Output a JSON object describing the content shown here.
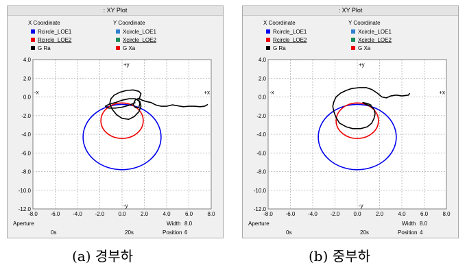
{
  "panels": [
    {
      "window_title": ": XY Plot",
      "legend": {
        "x_header": "X Coordinate",
        "y_header": "Y Coordinate",
        "x_items": [
          {
            "label": "Rcircle_LOE1",
            "color": "#0000ee",
            "underline": false
          },
          {
            "label": "Rcircle_LOE2",
            "color": "#ee0000",
            "underline": true
          },
          {
            "label": "G  Ra",
            "color": "#000000",
            "underline": false
          }
        ],
        "y_items": [
          {
            "label": "Xcircle_LOE1",
            "color": "#2f7fd0",
            "underline": false
          },
          {
            "label": "Xcircle_LOE2",
            "color": "#1a8a5a",
            "underline": true
          },
          {
            "label": "G  Xa",
            "color": "#ee0000",
            "underline": false
          }
        ]
      },
      "axis_markers": {
        "pos_y": "+y",
        "neg_y": "-y",
        "pos_x": "+x",
        "neg_x": "-x"
      },
      "footer": {
        "aperture_label": "Aperture",
        "width_label": "Width",
        "width_value": "8.0",
        "time_start": "0s",
        "time_end": "20s",
        "position_label": "Position",
        "position_value": "6"
      },
      "caption": "(a)  경부하"
    },
    {
      "window_title": ": XY Plot",
      "legend": {
        "x_header": "X Coordinate",
        "y_header": "Y Coordinate",
        "x_items": [
          {
            "label": "Rcircle_LOE1",
            "color": "#0000ee",
            "underline": false
          },
          {
            "label": "Rcircle_LOE2",
            "color": "#ee0000",
            "underline": true
          },
          {
            "label": "G  Ra",
            "color": "#000000",
            "underline": false
          }
        ],
        "y_items": [
          {
            "label": "Xcircle_LOE1",
            "color": "#2f7fd0",
            "underline": false
          },
          {
            "label": "Xcircle_LOE2",
            "color": "#1a8a5a",
            "underline": true
          },
          {
            "label": "G  Xa",
            "color": "#ee0000",
            "underline": false
          }
        ]
      },
      "axis_markers": {
        "pos_y": "+y",
        "neg_y": "-y",
        "pos_x": "+x",
        "neg_x": "-x"
      },
      "footer": {
        "aperture_label": "Aperture",
        "width_label": "Width",
        "width_value": "8.0",
        "time_start": "0s",
        "time_end": "20s",
        "position_label": "Position",
        "position_value": "4"
      },
      "caption": "(b)  중부하"
    }
  ],
  "chart_data": [
    {
      "type": "line",
      "xlim": [
        -8.0,
        8.0
      ],
      "ylim": [
        -12.0,
        4.0
      ],
      "x_ticks": [
        "-8.0",
        "-6.0",
        "-4.0",
        "-2.0",
        "0.0",
        "2.0",
        "4.0",
        "6.0",
        "8.0"
      ],
      "y_ticks": [
        "4.0",
        "2.0",
        "0.0",
        "-2.0",
        "-4.0",
        "-6.0",
        "-8.0",
        "-10.0",
        "-12.0"
      ],
      "grid": true,
      "circles": [
        {
          "center": [
            0.0,
            -4.3
          ],
          "radius": 3.5,
          "color": "#0000ee"
        },
        {
          "center": [
            0.0,
            -2.55
          ],
          "radius": 1.9,
          "color": "#ee0000"
        }
      ],
      "series": [
        {
          "color": "#000000",
          "points": [
            [
              7.7,
              -0.8
            ],
            [
              7.4,
              -1.0
            ],
            [
              7.0,
              -1.05
            ],
            [
              6.5,
              -1.0
            ],
            [
              6.0,
              -1.0
            ],
            [
              5.5,
              -1.05
            ],
            [
              5.0,
              -0.95
            ],
            [
              4.5,
              -0.85
            ],
            [
              4.0,
              -1.0
            ],
            [
              3.5,
              -1.0
            ],
            [
              3.0,
              -0.85
            ],
            [
              2.6,
              -0.6
            ],
            [
              2.2,
              -0.5
            ],
            [
              1.8,
              -0.35
            ],
            [
              1.5,
              -0.15
            ],
            [
              1.2,
              -0.3
            ],
            [
              1.0,
              -0.8
            ],
            [
              1.2,
              -1.15
            ],
            [
              1.5,
              -1.1
            ],
            [
              1.6,
              -0.75
            ],
            [
              1.5,
              -0.35
            ],
            [
              1.6,
              0.0
            ],
            [
              1.7,
              0.35
            ],
            [
              1.5,
              0.6
            ],
            [
              1.0,
              0.75
            ],
            [
              0.4,
              0.7
            ],
            [
              -0.2,
              0.5
            ],
            [
              -0.7,
              0.2
            ],
            [
              -1.0,
              -0.2
            ],
            [
              -1.1,
              -0.7
            ],
            [
              -0.9,
              -1.3
            ],
            [
              -0.5,
              -1.9
            ],
            [
              0.0,
              -2.3
            ],
            [
              0.6,
              -2.4
            ],
            [
              1.1,
              -2.1
            ],
            [
              1.5,
              -1.6
            ],
            [
              1.7,
              -1.0
            ],
            [
              1.6,
              -0.5
            ],
            [
              1.2,
              -0.2
            ],
            [
              0.6,
              -0.2
            ],
            [
              0.0,
              -0.35
            ],
            [
              -0.6,
              -0.6
            ],
            [
              -1.2,
              -0.8
            ],
            [
              -1.5,
              -1.0
            ],
            [
              -1.2,
              -1.2
            ],
            [
              -0.6,
              -1.2
            ],
            [
              0.0,
              -1.1
            ],
            [
              0.6,
              -0.9
            ],
            [
              1.2,
              -0.6
            ]
          ]
        }
      ]
    },
    {
      "type": "line",
      "xlim": [
        -8.0,
        8.0
      ],
      "ylim": [
        -12.0,
        4.0
      ],
      "x_ticks": [
        "-8.0",
        "-6.0",
        "-4.0",
        "-2.0",
        "0.0",
        "2.0",
        "4.0",
        "6.0",
        "8.0"
      ],
      "y_ticks": [
        "4.0",
        "2.0",
        "0.0",
        "-2.0",
        "-4.0",
        "-6.0",
        "-8.0",
        "-10.0",
        "-12.0"
      ],
      "grid": true,
      "circles": [
        {
          "center": [
            0.0,
            -4.3
          ],
          "radius": 3.5,
          "color": "#0000ee"
        },
        {
          "center": [
            0.0,
            -2.55
          ],
          "radius": 1.9,
          "color": "#ee0000"
        }
      ],
      "series": [
        {
          "color": "#000000",
          "points": [
            [
              4.7,
              0.4
            ],
            [
              4.6,
              0.2
            ],
            [
              4.0,
              0.1
            ],
            [
              3.5,
              0.2
            ],
            [
              3.0,
              0.1
            ],
            [
              2.6,
              -0.1
            ],
            [
              2.2,
              0.0
            ],
            [
              1.8,
              0.4
            ],
            [
              1.3,
              0.8
            ],
            [
              0.8,
              1.0
            ],
            [
              0.2,
              1.0
            ],
            [
              -0.5,
              0.9
            ],
            [
              -1.0,
              0.7
            ],
            [
              -1.5,
              0.4
            ],
            [
              -1.9,
              0.0
            ],
            [
              -2.1,
              -0.5
            ],
            [
              -2.2,
              -1.0
            ],
            [
              -2.1,
              -1.6
            ],
            [
              -1.9,
              -2.2
            ],
            [
              -1.6,
              -2.8
            ],
            [
              -1.0,
              -3.2
            ],
            [
              -0.4,
              -3.4
            ],
            [
              0.3,
              -3.4
            ],
            [
              0.9,
              -3.2
            ],
            [
              1.3,
              -2.8
            ],
            [
              1.5,
              -2.3
            ],
            [
              1.6,
              -1.8
            ],
            [
              1.5,
              -1.3
            ],
            [
              1.2,
              -1.0
            ],
            [
              0.8,
              -0.8
            ],
            [
              0.5,
              -0.6
            ],
            [
              0.9,
              -0.7
            ],
            [
              1.3,
              -0.9
            ]
          ]
        }
      ]
    }
  ]
}
